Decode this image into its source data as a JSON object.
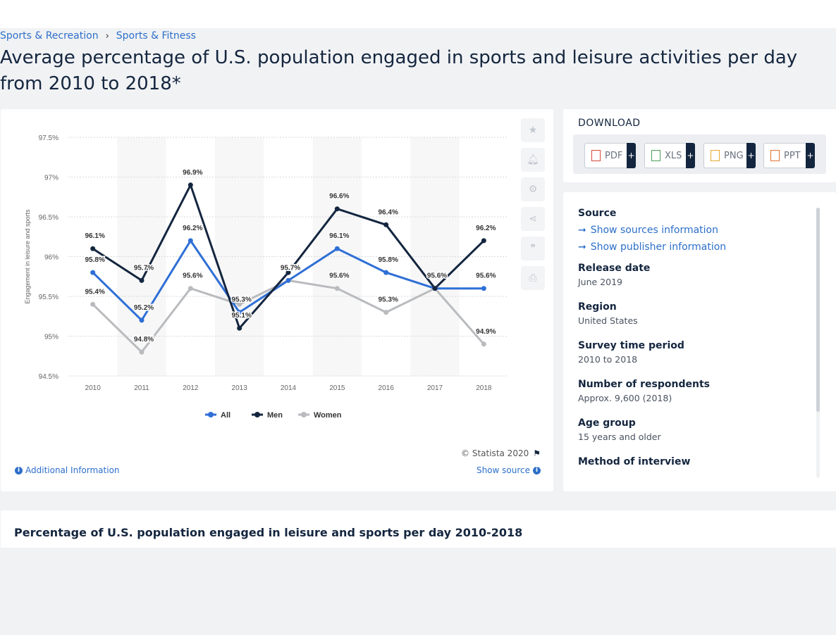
{
  "breadcrumb": {
    "items": [
      "Sports & Recreation",
      "Sports & Fitness"
    ]
  },
  "page_title": "Average percentage of U.S. population engaged in sports and leisure activities per day from 2010 to 2018*",
  "chart_footer": {
    "copyright": "© Statista 2020",
    "additional_info": "Additional Information",
    "show_source": "Show source"
  },
  "download": {
    "title": "DOWNLOAD",
    "buttons": [
      {
        "label": "PDF",
        "color": "#d6483a"
      },
      {
        "label": "XLS",
        "color": "#4aa05a"
      },
      {
        "label": "PNG",
        "color": "#e4a92d"
      },
      {
        "label": "PPT",
        "color": "#e0732f"
      }
    ],
    "plus": "+"
  },
  "info": {
    "source_label": "Source",
    "show_sources": "Show sources information",
    "show_publisher": "Show publisher information",
    "release_date_label": "Release date",
    "release_date": "June 2019",
    "region_label": "Region",
    "region": "United States",
    "survey_period_label": "Survey time period",
    "survey_period": "2010 to 2018",
    "respondents_label": "Number of respondents",
    "respondents": "Approx. 9,600 (2018)",
    "age_group_label": "Age group",
    "age_group": "15 years and older",
    "method_label": "Method of interview"
  },
  "bottom": {
    "title": "Percentage of U.S. population engaged in leisure and sports per day 2010-2018"
  },
  "chart_data": {
    "type": "line",
    "title": "",
    "xlabel": "",
    "ylabel": "Engagement in leisure and sports",
    "x": [
      "2010",
      "2011",
      "2012",
      "2013",
      "2014",
      "2015",
      "2016",
      "2017",
      "2018"
    ],
    "ylim": [
      94.5,
      97.5
    ],
    "yticks": [
      94.5,
      95,
      95.5,
      96,
      96.5,
      97,
      97.5
    ],
    "ytick_labels": [
      "94.5%",
      "95%",
      "95.5%",
      "96%",
      "96.5%",
      "97%",
      "97.5%"
    ],
    "grid": true,
    "legend_position": "bottom",
    "series": [
      {
        "name": "All",
        "color": "#2f6fd6",
        "values": [
          95.8,
          95.2,
          96.2,
          95.3,
          95.7,
          96.1,
          95.8,
          95.6,
          95.6
        ],
        "labels": [
          "95.8%",
          "95.2%",
          "96.2%",
          "95.3%",
          "95.7%",
          "96.1%",
          "95.8%",
          "95.6%",
          "95.6%"
        ]
      },
      {
        "name": "Men",
        "color": "#14263f",
        "values": [
          96.1,
          95.7,
          96.9,
          95.1,
          95.8,
          96.6,
          96.4,
          95.6,
          96.2
        ],
        "labels": [
          "96.1%",
          "95.7%",
          "96.9%",
          "95.1%",
          "",
          "96.6%",
          "96.4%",
          "",
          "96.2%"
        ]
      },
      {
        "name": "Women",
        "color": "#b9bbbe",
        "values": [
          95.4,
          94.8,
          95.6,
          95.4,
          95.7,
          95.6,
          95.3,
          95.6,
          94.9
        ],
        "labels": [
          "95.4%",
          "94.8%",
          "95.6%",
          "",
          "",
          "95.6%",
          "95.3%",
          "",
          "94.9%"
        ]
      }
    ]
  }
}
